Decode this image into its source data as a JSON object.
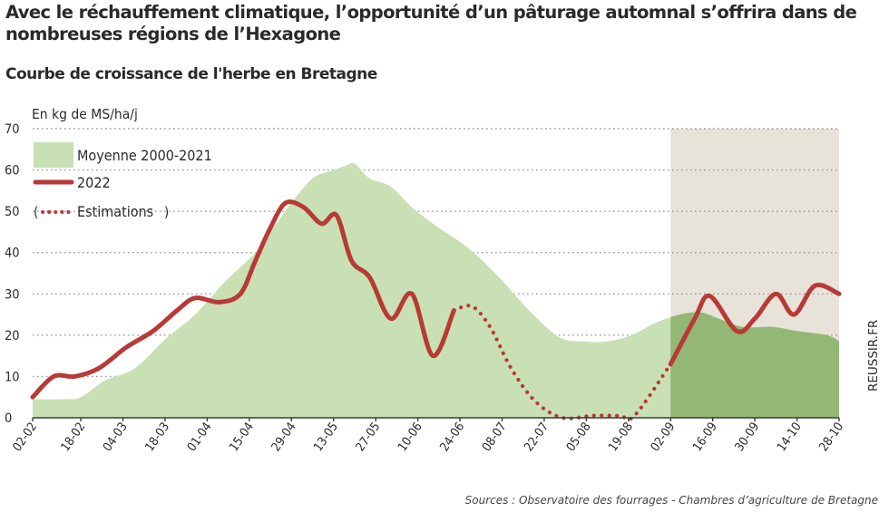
{
  "title": "Avec le réchauffement climatique, l’opportunité d’un pâturage automnal s’offrira dans de nombreuses régions de l’Hexagone",
  "subtitle": "Courbe de croissance de l'herbe en Bretagne",
  "source": "Sources : Observatoire des fourrages - Chambres d’agriculture de Bretagne",
  "watermark": "REUSSIR.FR",
  "chart_data": {
    "type": "area",
    "ylabel": "En kg de MS/ha/j",
    "ylim": [
      0,
      70
    ],
    "yticks": [
      0,
      10,
      20,
      30,
      40,
      50,
      60,
      70
    ],
    "x_range": [
      "2022-02-02",
      "2022-10-28"
    ],
    "xticks": [
      "02-02",
      "18-02",
      "04-03",
      "18-03",
      "01-04",
      "15-04",
      "29-04",
      "13-05",
      "27-05",
      "10-06",
      "24-06",
      "08-07",
      "22-07",
      "05-08",
      "19-08",
      "02-09",
      "16-09",
      "30-09",
      "14-10",
      "28-10"
    ],
    "grid": true,
    "legend": "top-left",
    "shaded_region": {
      "from": "2022-09-02",
      "to": "2022-10-28"
    },
    "colors": {
      "average": "#c8e0b4",
      "average_shaded": "#93b774",
      "y2022": "#b83a36",
      "shade": "#e8e3d8",
      "grid": "#9a9a9a"
    },
    "legend_labels": {
      "average": "Moyenne 2000-2021",
      "y2022": "2022",
      "estimations": "Estimations"
    },
    "series": [
      {
        "name": "Moyenne 2000-2021",
        "kind": "area",
        "points": [
          [
            "2022-02-02",
            4.5
          ],
          [
            "2022-02-12",
            4.5
          ],
          [
            "2022-02-18",
            5
          ],
          [
            "2022-02-26",
            9
          ],
          [
            "2022-03-08",
            12
          ],
          [
            "2022-03-18",
            19
          ],
          [
            "2022-03-28",
            25
          ],
          [
            "2022-04-07",
            33
          ],
          [
            "2022-04-17",
            40
          ],
          [
            "2022-04-24",
            47
          ],
          [
            "2022-04-30",
            53
          ],
          [
            "2022-05-06",
            58
          ],
          [
            "2022-05-11",
            59.5
          ],
          [
            "2022-05-17",
            61
          ],
          [
            "2022-05-20",
            61.5
          ],
          [
            "2022-05-25",
            58
          ],
          [
            "2022-06-01",
            56
          ],
          [
            "2022-06-08",
            51
          ],
          [
            "2022-06-17",
            46
          ],
          [
            "2022-06-27",
            41
          ],
          [
            "2022-07-07",
            34
          ],
          [
            "2022-07-17",
            26
          ],
          [
            "2022-07-27",
            19.5
          ],
          [
            "2022-08-04",
            18.5
          ],
          [
            "2022-08-12",
            18.5
          ],
          [
            "2022-08-20",
            20
          ],
          [
            "2022-08-28",
            23
          ],
          [
            "2022-09-05",
            25
          ],
          [
            "2022-09-12",
            25.5
          ],
          [
            "2022-09-18",
            24
          ],
          [
            "2022-09-26",
            22
          ],
          [
            "2022-10-06",
            22
          ],
          [
            "2022-10-14",
            21
          ],
          [
            "2022-10-24",
            20
          ],
          [
            "2022-10-28",
            18.5
          ]
        ]
      },
      {
        "name": "2022",
        "kind": "line",
        "points": [
          [
            "2022-02-02",
            5
          ],
          [
            "2022-02-09",
            10
          ],
          [
            "2022-02-16",
            10
          ],
          [
            "2022-02-24",
            12
          ],
          [
            "2022-03-05",
            17
          ],
          [
            "2022-03-14",
            21
          ],
          [
            "2022-03-22",
            26
          ],
          [
            "2022-03-28",
            29
          ],
          [
            "2022-04-05",
            28
          ],
          [
            "2022-04-12",
            30
          ],
          [
            "2022-04-17",
            38
          ],
          [
            "2022-04-22",
            46
          ],
          [
            "2022-04-27",
            52
          ],
          [
            "2022-05-03",
            51
          ],
          [
            "2022-05-09",
            47
          ],
          [
            "2022-05-14",
            49
          ],
          [
            "2022-05-19",
            38
          ],
          [
            "2022-05-25",
            34
          ],
          [
            "2022-06-01",
            24
          ],
          [
            "2022-06-08",
            30
          ],
          [
            "2022-06-15",
            15
          ],
          [
            "2022-06-22",
            26
          ]
        ]
      },
      {
        "name": "Estimations",
        "kind": "dotted",
        "points": [
          [
            "2022-06-22",
            26
          ],
          [
            "2022-06-28",
            27
          ],
          [
            "2022-07-04",
            22
          ],
          [
            "2022-07-11",
            12
          ],
          [
            "2022-07-19",
            4
          ],
          [
            "2022-07-28",
            0
          ],
          [
            "2022-08-07",
            0.5
          ],
          [
            "2022-08-16",
            0.5
          ],
          [
            "2022-08-21",
            0.5
          ],
          [
            "2022-09-02",
            13
          ]
        ]
      },
      {
        "name": "2022 (suite)",
        "kind": "line",
        "points": [
          [
            "2022-09-02",
            13
          ],
          [
            "2022-09-10",
            24
          ],
          [
            "2022-09-15",
            29.5
          ],
          [
            "2022-09-24",
            21
          ],
          [
            "2022-09-30",
            24
          ],
          [
            "2022-10-07",
            30
          ],
          [
            "2022-10-13",
            25
          ],
          [
            "2022-10-20",
            32
          ],
          [
            "2022-10-28",
            30
          ]
        ]
      }
    ]
  }
}
